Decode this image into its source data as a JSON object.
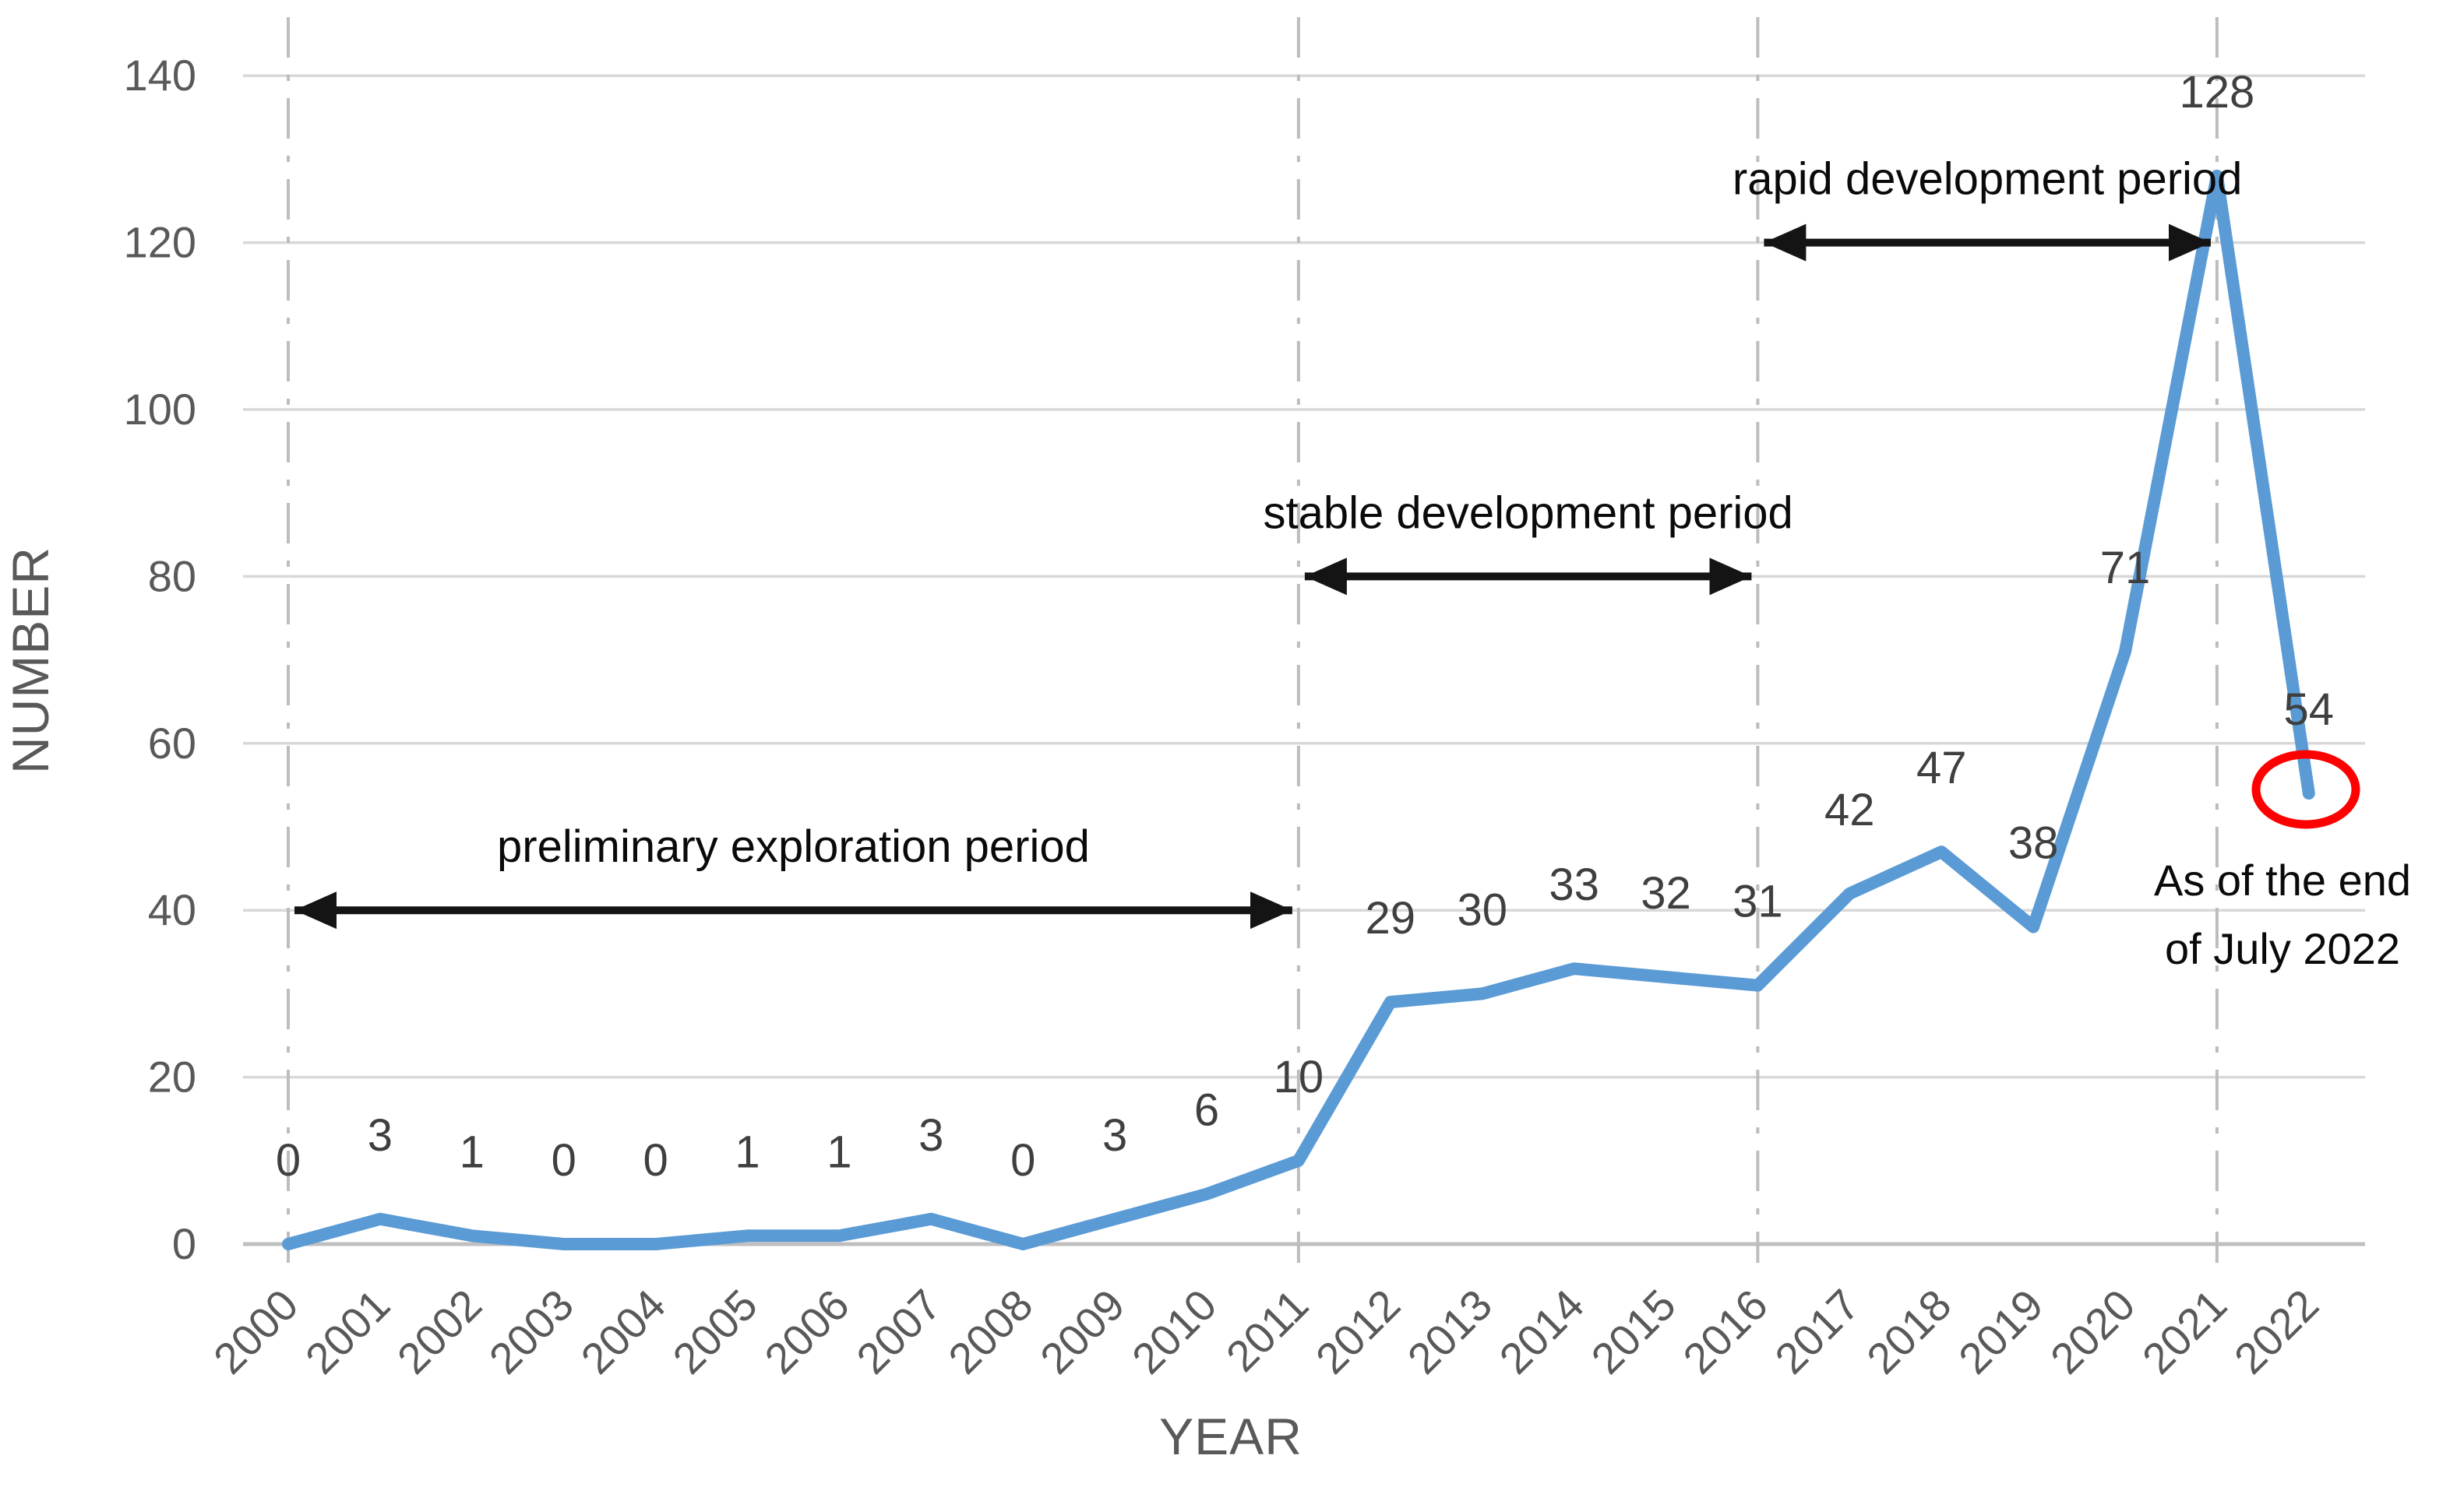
{
  "chart_data": {
    "type": "line",
    "title": "",
    "xlabel": "YEAR",
    "ylabel": "NUMBER",
    "x": [
      2000,
      2001,
      2002,
      2003,
      2004,
      2005,
      2006,
      2007,
      2008,
      2009,
      2010,
      2011,
      2012,
      2013,
      2014,
      2015,
      2016,
      2017,
      2018,
      2019,
      2020,
      2021,
      2022
    ],
    "series": [
      {
        "name": "NUMBER",
        "values": [
          0,
          3,
          1,
          0,
          0,
          1,
          1,
          3,
          0,
          3,
          6,
          10,
          29,
          30,
          33,
          32,
          31,
          42,
          47,
          38,
          71,
          128,
          54
        ]
      }
    ],
    "data_labels_shown": true,
    "ylim": [
      0,
      140
    ],
    "yticks": [
      0,
      20,
      40,
      60,
      80,
      100,
      120,
      140
    ],
    "grid": "horizontal",
    "legend_position": "none",
    "period_boundary_years": [
      2000,
      2011,
      2016,
      2021
    ],
    "periods": [
      {
        "label": "preliminary exploration period",
        "from_year": 2000,
        "to_year": 2011,
        "at_value": 40
      },
      {
        "label": "stable development period",
        "from_year": 2011,
        "to_year": 2016,
        "at_value": 80
      },
      {
        "label": "rapid development period",
        "from_year": 2016,
        "to_year": 2021,
        "at_value": 120
      }
    ],
    "highlight": {
      "shape": "ellipse",
      "year": 2022,
      "value": 54,
      "note_lines": [
        "As of the end",
        "of July 2022"
      ]
    },
    "colors": {
      "line": "#5b9bd5",
      "gridline": "#d8d8d8",
      "axis_line": "#bfbfbf",
      "boundary_line": "#bdbdbd",
      "tick_label": "#595959",
      "data_label": "#3f3f3f",
      "annotation": "#0a0a0a",
      "highlight": "#fe0000"
    }
  }
}
